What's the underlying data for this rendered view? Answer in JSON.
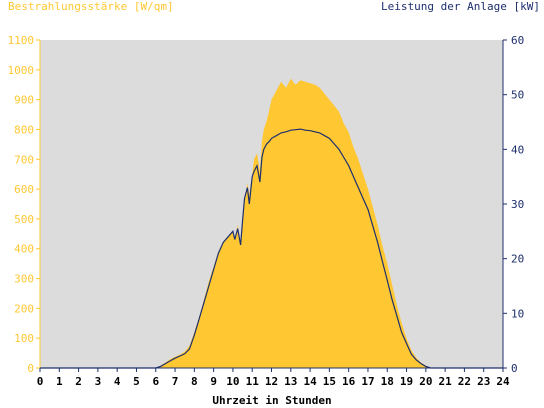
{
  "header": {
    "left_title": "Bestrahlungsstärke [W/qm]",
    "right_title": "Leistung der Anlage [kW]"
  },
  "colors": {
    "irradiance": "#ffc832",
    "power": "#1e2f6e",
    "plot_background": "#dcdcdc"
  },
  "chart_data": {
    "type": "area",
    "xlabel": "Uhrzeit in Stunden",
    "ylabel": "Bestrahlungsstärke [W/qm]",
    "y2label": "Leistung der Anlage [kW]",
    "xlim": [
      0,
      24
    ],
    "ylim": [
      0,
      1100
    ],
    "y2lim": [
      0,
      60
    ],
    "grid": false,
    "x_ticks": [
      0,
      1,
      2,
      3,
      4,
      5,
      6,
      7,
      8,
      9,
      10,
      11,
      12,
      13,
      14,
      15,
      16,
      17,
      18,
      19,
      20,
      21,
      22,
      23,
      24
    ],
    "y_ticks": [
      0,
      100,
      200,
      300,
      400,
      500,
      600,
      700,
      800,
      900,
      1000,
      1100
    ],
    "y2_ticks": [
      0,
      10,
      20,
      30,
      40,
      50,
      60
    ],
    "series": [
      {
        "name": "Bestrahlungsstärke [W/qm]",
        "axis": "left",
        "style": "area",
        "x": [
          0,
          6.0,
          6.25,
          6.5,
          6.75,
          7.0,
          7.25,
          7.5,
          7.75,
          8.0,
          8.25,
          8.5,
          8.75,
          9.0,
          9.25,
          9.5,
          9.75,
          10.0,
          10.1,
          10.25,
          10.4,
          10.5,
          10.6,
          10.75,
          10.85,
          11.0,
          11.1,
          11.25,
          11.4,
          11.5,
          11.6,
          11.75,
          11.9,
          12.0,
          12.25,
          12.5,
          12.75,
          13.0,
          13.25,
          13.5,
          13.75,
          14.0,
          14.25,
          14.5,
          14.75,
          15.0,
          15.25,
          15.5,
          15.75,
          16.0,
          16.25,
          16.5,
          16.75,
          17.0,
          17.25,
          17.5,
          17.75,
          18.0,
          18.25,
          18.5,
          18.75,
          19.0,
          19.25,
          19.5,
          19.75,
          20.0,
          20.25,
          20.5,
          20.75,
          21.0,
          21.25,
          21.5,
          22.0,
          24
        ],
        "y": [
          0,
          0,
          8,
          18,
          30,
          38,
          45,
          55,
          75,
          120,
          170,
          230,
          290,
          340,
          390,
          420,
          440,
          460,
          430,
          480,
          420,
          500,
          560,
          620,
          580,
          650,
          700,
          720,
          660,
          760,
          800,
          830,
          870,
          900,
          930,
          960,
          940,
          970,
          950,
          965,
          960,
          955,
          950,
          940,
          920,
          900,
          880,
          860,
          820,
          790,
          740,
          700,
          650,
          600,
          540,
          480,
          410,
          350,
          280,
          210,
          150,
          100,
          60,
          35,
          18,
          8,
          0,
          0,
          0,
          0,
          0,
          0,
          0,
          0
        ]
      },
      {
        "name": "Leistung der Anlage [kW]",
        "axis": "right",
        "style": "line",
        "x": [
          0,
          6.0,
          6.25,
          6.5,
          6.75,
          7.0,
          7.25,
          7.5,
          7.75,
          8.0,
          8.25,
          8.5,
          8.75,
          9.0,
          9.25,
          9.5,
          9.75,
          10.0,
          10.1,
          10.25,
          10.4,
          10.5,
          10.6,
          10.75,
          10.85,
          11.0,
          11.1,
          11.25,
          11.4,
          11.5,
          11.6,
          11.75,
          11.9,
          12.0,
          12.25,
          12.5,
          12.75,
          13.0,
          13.25,
          13.5,
          13.75,
          14.0,
          14.25,
          14.5,
          14.75,
          15.0,
          15.25,
          15.5,
          15.75,
          16.0,
          16.25,
          16.5,
          16.75,
          17.0,
          17.25,
          17.5,
          17.75,
          18.0,
          18.25,
          18.5,
          18.75,
          19.0,
          19.25,
          19.5,
          19.75,
          20.0,
          20.25,
          20.5,
          20.75,
          21.0,
          21.25,
          21.5,
          22.0,
          24
        ],
        "y": [
          0,
          0,
          0.3,
          0.8,
          1.3,
          1.8,
          2.2,
          2.6,
          3.5,
          6,
          9,
          12,
          15,
          18,
          21,
          23,
          24,
          25,
          23.5,
          25.5,
          22.5,
          27,
          31,
          33,
          30,
          35,
          36,
          37,
          34,
          38.5,
          40,
          41,
          41.5,
          42,
          42.5,
          43,
          43.2,
          43.5,
          43.6,
          43.7,
          43.5,
          43.4,
          43.2,
          43,
          42.5,
          42,
          41,
          40,
          38.5,
          37,
          35,
          33,
          31,
          29,
          26,
          23,
          19.5,
          16,
          12.5,
          9.5,
          6.5,
          4.5,
          2.5,
          1.5,
          0.8,
          0.3,
          0,
          0,
          0,
          0,
          0,
          0,
          0,
          0
        ]
      }
    ]
  }
}
